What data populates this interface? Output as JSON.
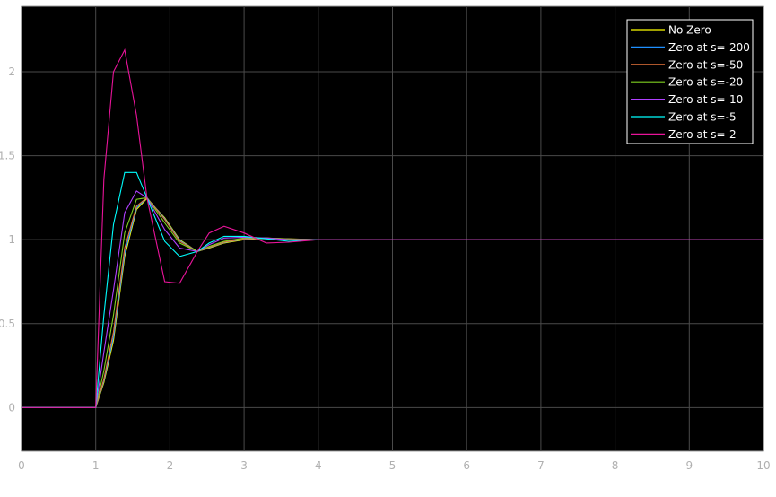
{
  "chart_data": {
    "type": "line",
    "title": "",
    "xlabel": "",
    "ylabel": "",
    "xlim": [
      0,
      10
    ],
    "ylim": [
      -0.26,
      2.39
    ],
    "grid": true,
    "legend_position": "top-right",
    "background": "#000000",
    "x_ticks": [
      "0",
      "1",
      "2",
      "3",
      "4",
      "5",
      "6",
      "7",
      "8",
      "9",
      "10"
    ],
    "y_ticks": [
      "0",
      "0.5",
      "1",
      "1.5",
      "2"
    ],
    "x": [
      0,
      1,
      1.11,
      1.24,
      1.39,
      1.55,
      1.69,
      1.93,
      2.13,
      2.37,
      2.53,
      2.73,
      3.0,
      3.3,
      3.6,
      4,
      5,
      10
    ],
    "series": [
      {
        "name": "No Zero",
        "color": "#ffff00",
        "values": [
          0,
          0,
          0.15,
          0.4,
          0.9,
          1.18,
          1.245,
          1.13,
          1.0,
          0.93,
          0.95,
          0.98,
          1.0,
          1.01,
          1.005,
          1.0,
          1.0,
          1.0
        ]
      },
      {
        "name": "Zero at s=-200",
        "color": "#1e90ff",
        "values": [
          0,
          0,
          0.16,
          0.42,
          0.92,
          1.19,
          1.25,
          1.125,
          0.995,
          0.93,
          0.953,
          0.983,
          1.003,
          1.01,
          1.004,
          1.0,
          1.0,
          1.0
        ]
      },
      {
        "name": "Zero at s=-50",
        "color": "#e8743b",
        "values": [
          0,
          0,
          0.17,
          0.45,
          0.95,
          1.2,
          1.25,
          1.12,
          0.99,
          0.93,
          0.955,
          0.985,
          1.005,
          1.01,
          1.004,
          1.0,
          1.0,
          1.0
        ]
      },
      {
        "name": "Zero at s=-20",
        "color": "#7fcf20",
        "values": [
          0,
          0,
          0.22,
          0.55,
          1.04,
          1.24,
          1.25,
          1.1,
          0.98,
          0.93,
          0.96,
          0.99,
          1.01,
          1.01,
          1.003,
          1.0,
          1.0,
          1.0
        ]
      },
      {
        "name": "Zero at s=-10",
        "color": "#b040ff",
        "values": [
          0,
          0,
          0.33,
          0.7,
          1.16,
          1.29,
          1.25,
          1.06,
          0.95,
          0.93,
          0.97,
          1.01,
          1.015,
          1.01,
          1.0,
          1.0,
          1.0,
          1.0
        ]
      },
      {
        "name": "Zero at s=-5",
        "color": "#00ffff",
        "values": [
          0,
          0,
          0.55,
          1.09,
          1.4,
          1.4,
          1.25,
          0.99,
          0.9,
          0.93,
          0.98,
          1.02,
          1.02,
          1.005,
          0.99,
          1.0,
          1.0,
          1.0
        ]
      },
      {
        "name": "Zero at s=-2",
        "color": "#e8149a",
        "values": [
          0,
          0,
          1.36,
          2.0,
          2.13,
          1.74,
          1.25,
          0.75,
          0.74,
          0.93,
          1.04,
          1.08,
          1.04,
          0.98,
          0.985,
          1.0,
          1.0,
          1.0
        ]
      }
    ]
  }
}
